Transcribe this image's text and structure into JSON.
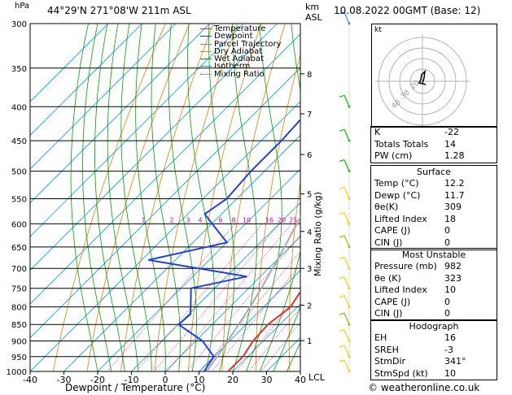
{
  "header": {
    "hpa_label": "hPa",
    "km_label": "km",
    "asl_label": "ASL",
    "location": "44°29'N  271°08'W  211m ASL",
    "datetime": "10.08.2022  00GMT  (Base: 12)"
  },
  "legend": [
    {
      "label": "Temperature",
      "color": "#e03030",
      "dash": "none"
    },
    {
      "label": "Dewpoint",
      "color": "#2040e0",
      "dash": "none"
    },
    {
      "label": "Parcel Trajectory",
      "color": "#888888",
      "dash": "none"
    },
    {
      "label": "Dry Adiabat",
      "color": "#e08000",
      "dash": "none"
    },
    {
      "label": "Wet Adiabat",
      "color": "#00a000",
      "dash": "none"
    },
    {
      "label": "Isotherm",
      "color": "#00a0e0",
      "dash": "none"
    },
    {
      "label": "Mixing Ratio",
      "color": "#e000a0",
      "dash": "dot"
    }
  ],
  "axis": {
    "xlabel": "Dewpoint / Temperature (°C)",
    "right_label": "Mixing Ratio (g/kg)",
    "lcl_label": "LCL"
  },
  "chart_data": {
    "type": "line",
    "pressure_ticks": [
      300,
      350,
      400,
      450,
      500,
      550,
      600,
      650,
      700,
      750,
      800,
      850,
      900,
      950,
      1000
    ],
    "temp_ticks": [
      -40,
      -30,
      -20,
      -10,
      0,
      10,
      20,
      30,
      40
    ],
    "xlim": [
      -40,
      40
    ],
    "ylim": [
      1000,
      300
    ],
    "km_ticks": [
      {
        "label": "8",
        "p": 357
      },
      {
        "label": "7",
        "p": 410
      },
      {
        "label": "6",
        "p": 472
      },
      {
        "label": "5",
        "p": 541
      },
      {
        "label": "4",
        "p": 616
      },
      {
        "label": "3",
        "p": 700
      },
      {
        "label": "2",
        "p": 795
      },
      {
        "label": "1",
        "p": 899
      }
    ],
    "mixing_ratio_labels": [
      "1",
      "2",
      "3",
      "4",
      "6",
      "8",
      "10",
      "16",
      "20",
      "25"
    ],
    "series": [
      {
        "name": "Temperature",
        "points": [
          [
            1000,
            18.6
          ],
          [
            950,
            18.6
          ],
          [
            900,
            17.0
          ],
          [
            850,
            16.5
          ],
          [
            800,
            18.0
          ],
          [
            750,
            16.0
          ],
          [
            700,
            15.5
          ],
          [
            680,
            16.6
          ],
          [
            650,
            13.5
          ],
          [
            600,
            10.0
          ],
          [
            550,
            6.6
          ],
          [
            500,
            4.5
          ],
          [
            450,
            0.0
          ],
          [
            400,
            -7.0
          ],
          [
            350,
            -13.5
          ],
          [
            300,
            -20.0
          ]
        ]
      },
      {
        "name": "Dewpoint",
        "points": [
          [
            1000,
            11.5
          ],
          [
            950,
            10.0
          ],
          [
            900,
            2.0
          ],
          [
            850,
            -10.0
          ],
          [
            820,
            -9.5
          ],
          [
            750,
            -17.0
          ],
          [
            720,
            -4.0
          ],
          [
            680,
            -38.0
          ],
          [
            640,
            -20.0
          ],
          [
            580,
            -35.0
          ],
          [
            550,
            -33.0
          ],
          [
            500,
            -34.0
          ],
          [
            450,
            -34.0
          ],
          [
            400,
            -35.0
          ],
          [
            350,
            -34.0
          ],
          [
            300,
            -34.0
          ]
        ]
      },
      {
        "name": "Parcel Trajectory",
        "points": [
          [
            1000,
            12.2
          ],
          [
            950,
            11.0
          ],
          [
            900,
            9.5
          ],
          [
            850,
            7.8
          ],
          [
            800,
            6.0
          ],
          [
            750,
            3.8
          ],
          [
            700,
            1.2
          ],
          [
            650,
            -1.6
          ],
          [
            600,
            -4.8
          ],
          [
            550,
            -8.4
          ],
          [
            500,
            -12.5
          ],
          [
            450,
            -17.2
          ],
          [
            400,
            -22.5
          ],
          [
            350,
            -28.5
          ],
          [
            300,
            -35.4
          ]
        ]
      }
    ]
  },
  "hodograph": {
    "title": "kt",
    "ring_labels": [
      "40",
      "30",
      "20"
    ]
  },
  "indices": {
    "top": [
      {
        "k": "K",
        "v": "-22"
      },
      {
        "k": "Totals Totals",
        "v": "14"
      },
      {
        "k": "PW (cm)",
        "v": "1.28"
      }
    ],
    "surface_title": "Surface",
    "surface": [
      {
        "k": "Temp (°C)",
        "v": "12.2"
      },
      {
        "k": "Dewp (°C)",
        "v": "11.7"
      },
      {
        "k": "θe(K)",
        "v": "309"
      },
      {
        "k": "Lifted Index",
        "v": "18"
      },
      {
        "k": "CAPE (J)",
        "v": "0"
      },
      {
        "k": "CIN (J)",
        "v": "0"
      }
    ],
    "unstable_title": "Most Unstable",
    "unstable": [
      {
        "k": "Pressure (mb)",
        "v": "982"
      },
      {
        "k": "θe (K)",
        "v": "323"
      },
      {
        "k": "Lifted Index",
        "v": "10"
      },
      {
        "k": "CAPE (J)",
        "v": "0"
      },
      {
        "k": "CIN (J)",
        "v": "0"
      }
    ],
    "hodo_title": "Hodograph",
    "hodo": [
      {
        "k": "EH",
        "v": "16"
      },
      {
        "k": "SREH",
        "v": "-3"
      },
      {
        "k": "StmDir",
        "v": "341°"
      },
      {
        "k": "StmSpd (kt)",
        "v": "10"
      }
    ]
  },
  "footer": {
    "copyright": "© weatheronline.co.uk"
  }
}
